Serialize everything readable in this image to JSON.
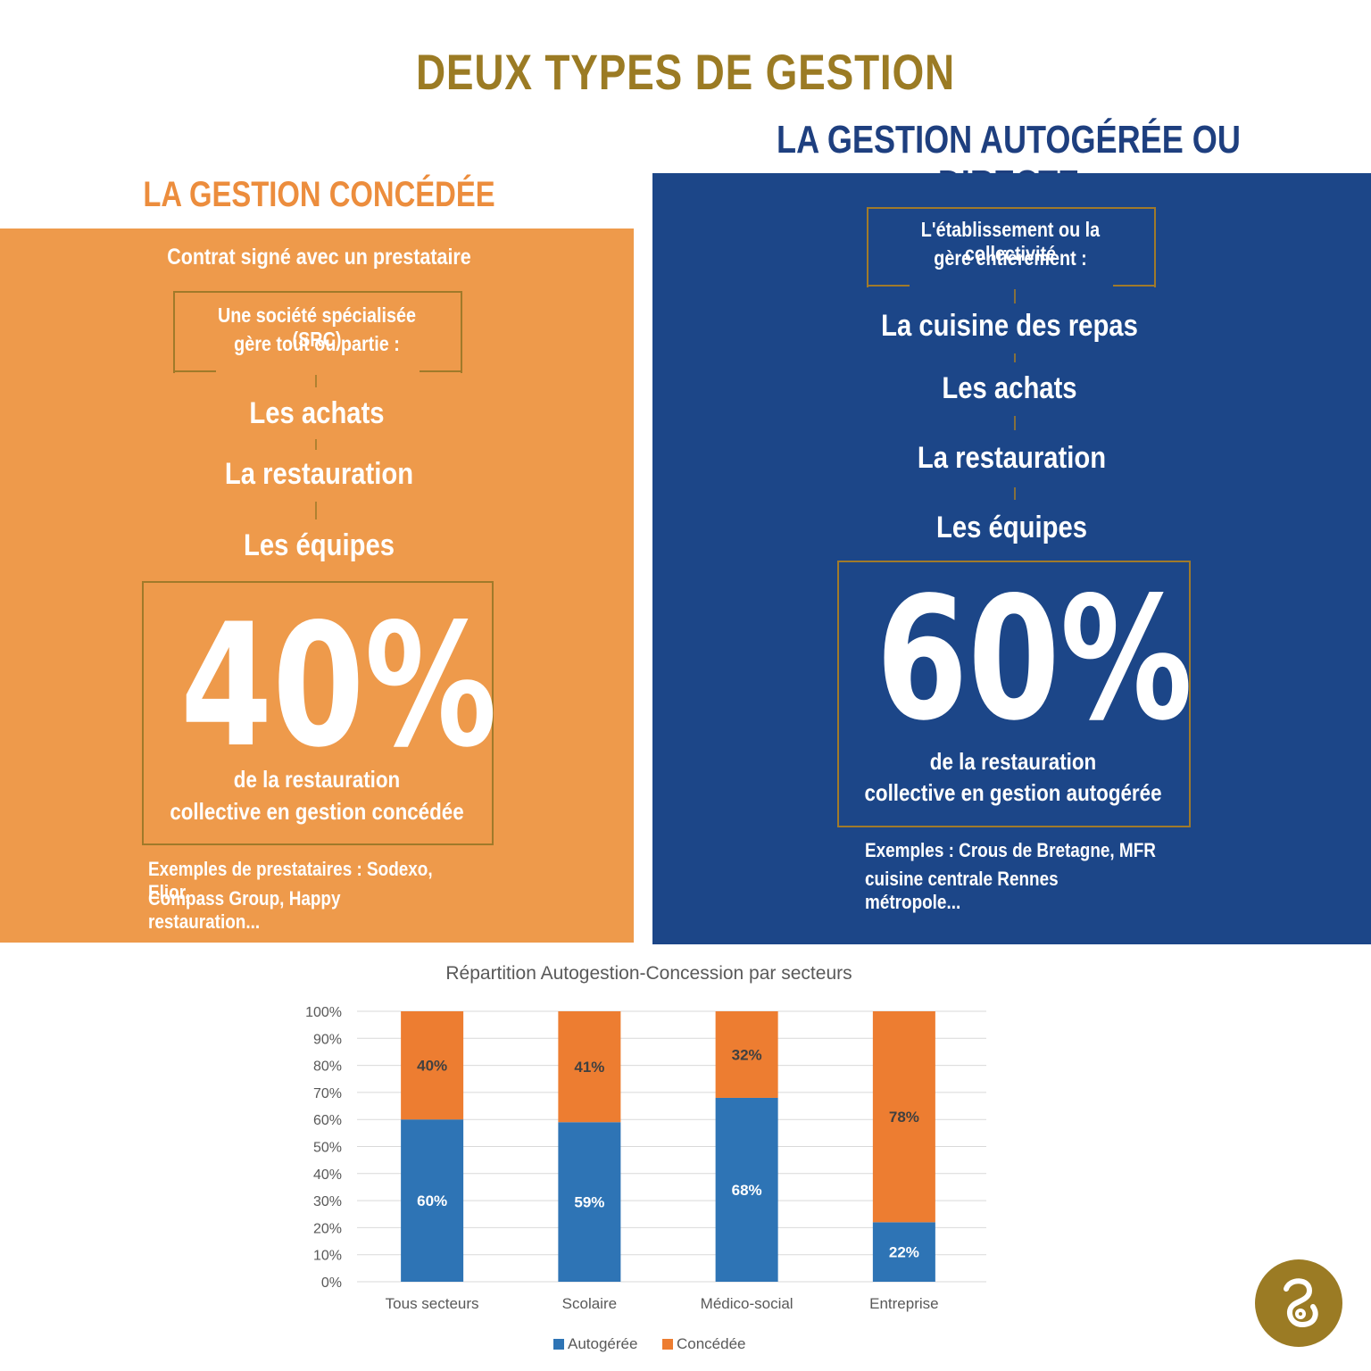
{
  "title": "DEUX TYPES DE GESTION",
  "concedee": {
    "heading": "LA GESTION CONCÉDÉE",
    "contract": "Contrat signé avec un prestataire",
    "box_line1": "Une société spécialisée (SRC)",
    "box_line2": "gère tout ou partie :",
    "items": [
      "Les achats",
      "La restauration",
      "Les équipes"
    ],
    "percent": "40%",
    "desc_line1": "de la restauration",
    "desc_line2": "collective en gestion concédée",
    "examples_line1": "Exemples de prestataires : Sodexo, Elior,",
    "examples_line2": "Compass Group, Happy restauration..."
  },
  "autogeree": {
    "heading": "LA GESTION AUTOGÉRÉE OU DIRECTE",
    "box_line1": "L'établissement ou la collectivité",
    "box_line2": "gère entièrement :",
    "items": [
      "La cuisine des repas",
      "Les achats",
      "La restauration",
      "Les équipes"
    ],
    "percent": "60%",
    "desc_line1": "de la restauration",
    "desc_line2": "collective en gestion autogérée",
    "examples_line1": "Exemples : Crous de Bretagne, MFR ,",
    "examples_line2": "cuisine centrale Rennes métropole..."
  },
  "colors": {
    "orange_panel": "#ee9a4b",
    "blue_panel": "#1c4688",
    "gold": "#9b7b24",
    "bar_blue": "#2e74b5",
    "bar_orange": "#ed7d31"
  },
  "chart_data": {
    "type": "bar",
    "stacked": true,
    "title": "Répartition Autogestion-Concession par secteurs",
    "categories": [
      "Tous secteurs",
      "Scolaire",
      "Médico-social",
      "Entreprise"
    ],
    "series": [
      {
        "name": "Autogérée",
        "values": [
          60,
          59,
          68,
          22
        ],
        "labels": [
          "60%",
          "59%",
          "68%",
          "22%"
        ],
        "color": "#2e74b5"
      },
      {
        "name": "Concédée",
        "values": [
          40,
          41,
          32,
          78
        ],
        "labels": [
          "40%",
          "41%",
          "32%",
          "78%"
        ],
        "color": "#ed7d31"
      }
    ],
    "y_ticks": [
      "0%",
      "10%",
      "20%",
      "30%",
      "40%",
      "50%",
      "60%",
      "70%",
      "80%",
      "90%",
      "100%"
    ],
    "ylim": [
      0,
      100
    ],
    "grid": true,
    "legend": "bottom"
  }
}
